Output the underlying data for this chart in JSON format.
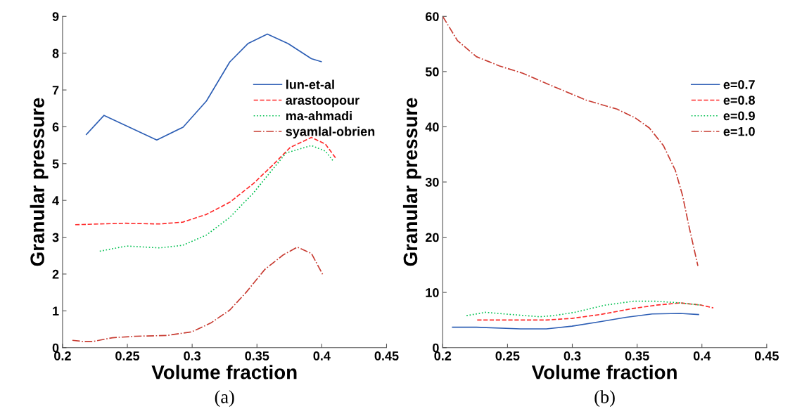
{
  "chart_data": [
    {
      "type": "line",
      "xlabel": "Volume fraction",
      "ylabel": "Granular pressure",
      "annotations": [
        "(a)"
      ],
      "xlim": [
        0.2,
        0.45
      ],
      "ylim": [
        0,
        9
      ],
      "xticks": [
        0.2,
        0.25,
        0.3,
        0.35,
        0.4,
        0.45
      ],
      "yticks": [
        0,
        1,
        2,
        3,
        4,
        5,
        6,
        7,
        8,
        9
      ],
      "grid": false,
      "legend": "right",
      "series": [
        {
          "name": "lun-et-al",
          "color": "#2e5fb5",
          "line_style": "solid",
          "x": [
            0.2184,
            0.232,
            0.2727,
            0.293,
            0.311,
            0.329,
            0.343,
            0.358,
            0.374,
            0.392,
            0.3996
          ],
          "values": [
            5.79,
            6.31,
            5.64,
            5.99,
            6.7,
            7.76,
            8.26,
            8.52,
            8.26,
            7.85,
            7.77
          ]
        },
        {
          "name": "arastoopour",
          "color": "#ff2a2a",
          "line_style": "dashed",
          "x": [
            0.2098,
            0.2477,
            0.2748,
            0.2927,
            0.311,
            0.329,
            0.347,
            0.3616,
            0.3757,
            0.392,
            0.4028,
            0.411
          ],
          "values": [
            3.34,
            3.38,
            3.36,
            3.41,
            3.62,
            3.95,
            4.45,
            4.94,
            5.44,
            5.71,
            5.53,
            5.14
          ]
        },
        {
          "name": "ma-ahmadi",
          "color": "#00c050",
          "line_style": "dotted",
          "x": [
            0.2287,
            0.2493,
            0.2748,
            0.2927,
            0.311,
            0.329,
            0.347,
            0.3578,
            0.3725,
            0.392,
            0.4028,
            0.4093
          ],
          "values": [
            2.62,
            2.76,
            2.71,
            2.78,
            3.06,
            3.54,
            4.19,
            4.66,
            5.29,
            5.49,
            5.34,
            5.05
          ]
        },
        {
          "name": "syamlal-obrien",
          "color": "#c83c32",
          "line_style": "dashdot",
          "x": [
            0.2076,
            0.2152,
            0.2239,
            0.2385,
            0.2564,
            0.2803,
            0.2998,
            0.3144,
            0.329,
            0.3416,
            0.3562,
            0.3703,
            0.3811,
            0.392,
            0.4007
          ],
          "values": [
            0.2,
            0.17,
            0.17,
            0.27,
            0.31,
            0.33,
            0.43,
            0.67,
            1.02,
            1.5,
            2.13,
            2.52,
            2.73,
            2.56,
            1.99
          ]
        }
      ]
    },
    {
      "type": "line",
      "xlabel": "Volume fraction",
      "ylabel": "Granular pressure",
      "annotations": [
        "(b)"
      ],
      "xlim": [
        0.2,
        0.45
      ],
      "ylim": [
        0,
        60
      ],
      "xticks": [
        0.2,
        0.25,
        0.3,
        0.35,
        0.4,
        0.45
      ],
      "yticks": [
        0,
        10,
        20,
        30,
        40,
        50,
        60
      ],
      "grid": false,
      "legend": "right",
      "series": [
        {
          "name": "e=0.7",
          "color": "#2e5fb5",
          "line_style": "solid",
          "x": [
            0.2076,
            0.226,
            0.26,
            0.28,
            0.2998,
            0.3215,
            0.3416,
            0.3616,
            0.3833,
            0.3974
          ],
          "values": [
            3.7,
            3.7,
            3.4,
            3.4,
            3.9,
            4.7,
            5.5,
            6.1,
            6.2,
            6.0
          ]
        },
        {
          "name": "e=0.8",
          "color": "#ff2a2a",
          "line_style": "dashed",
          "x": [
            0.2266,
            0.2564,
            0.28,
            0.2998,
            0.3215,
            0.347,
            0.3649,
            0.3833,
            0.3996,
            0.4088
          ],
          "values": [
            5.0,
            5.0,
            5.0,
            5.3,
            6.0,
            7.1,
            7.7,
            8.1,
            7.7,
            7.2
          ]
        },
        {
          "name": "e=0.9",
          "color": "#00c050",
          "line_style": "dotted",
          "x": [
            0.2184,
            0.233,
            0.2531,
            0.2748,
            0.2857,
            0.302,
            0.3253,
            0.347,
            0.3649,
            0.3833,
            0.3996
          ],
          "values": [
            5.8,
            6.4,
            6.0,
            5.6,
            5.8,
            6.4,
            7.7,
            8.4,
            8.4,
            8.1,
            7.7
          ]
        },
        {
          "name": "e=1.0",
          "color": "#c83c32",
          "line_style": "dashdot",
          "x": [
            0.2,
            0.2114,
            0.226,
            0.244,
            0.2618,
            0.2835,
            0.311,
            0.3345,
            0.3486,
            0.3594,
            0.3703,
            0.3795,
            0.385,
            0.39,
            0.3969
          ],
          "values": [
            60,
            55.6,
            52.7,
            51.0,
            49.7,
            47.5,
            44.8,
            43.2,
            41.6,
            39.8,
            36.6,
            32.1,
            27.6,
            22,
            14.8
          ]
        }
      ]
    }
  ]
}
